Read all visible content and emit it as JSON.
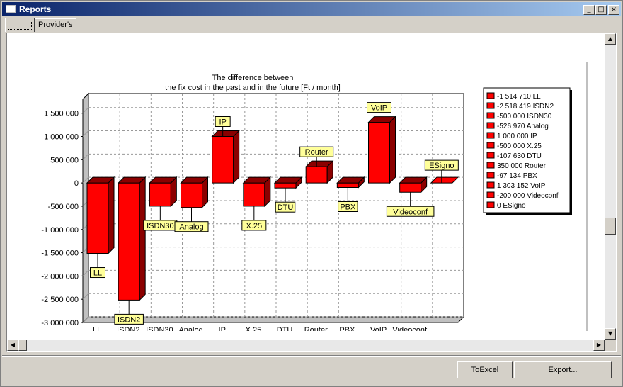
{
  "window": {
    "title": "Reports"
  },
  "tabs": [
    {
      "label": ""
    },
    {
      "label": "Provider's data"
    }
  ],
  "buttons": {
    "to_excel": "ToExcel",
    "export": "Export..."
  },
  "chart_data": {
    "type": "bar",
    "title_line1": "The difference between",
    "title_line2": "the fix cost in the past and in the future [Ft / month]",
    "categories": [
      "LL",
      "ISDN2",
      "ISDN30",
      "Analog",
      "IP",
      "X.25",
      "DTU",
      "Router",
      "PBX",
      "VoIP",
      "Videoconf",
      "ESigno"
    ],
    "x_tick_labels": [
      "LL",
      "ISDN2",
      "ISDN30",
      "Analog",
      "IP",
      "X.25",
      "DTU",
      "Router",
      "PBX",
      "VoIP",
      "Videoconf",
      ""
    ],
    "values": [
      -1514710,
      -2518419,
      -500000,
      -526970,
      1000000,
      -500000,
      -107630,
      350000,
      -97134,
      1303152,
      -200000,
      0
    ],
    "y_ticks": [
      "1 500 000",
      "1 000 000",
      "500 000",
      "0",
      "-500 000",
      "-1 000 000",
      "-1 500 000",
      "-2 000 000",
      "-2 500 000",
      "-3 000 000"
    ],
    "y_tick_values": [
      1500000,
      1000000,
      500000,
      0,
      -500000,
      -1000000,
      -1500000,
      -2000000,
      -2500000,
      -3000000
    ],
    "ylim": [
      -3000000,
      1800000
    ],
    "legend": [
      "-1 514 710 LL",
      "-2 518 419 ISDN2",
      "-500 000 ISDN30",
      "-526 970 Analog",
      "1 000 000 IP",
      "-500 000 X.25",
      "-107 630 DTU",
      "350 000 Router",
      "-97 134 PBX",
      "1 303 152 VoIP",
      "-200 000 Videoconf",
      "0 ESigno"
    ],
    "legend_placement": "right",
    "grid": true,
    "bar_color": "#ff0000",
    "bar_side_color": "#8b0000",
    "label_box_color": "#ffff99"
  }
}
